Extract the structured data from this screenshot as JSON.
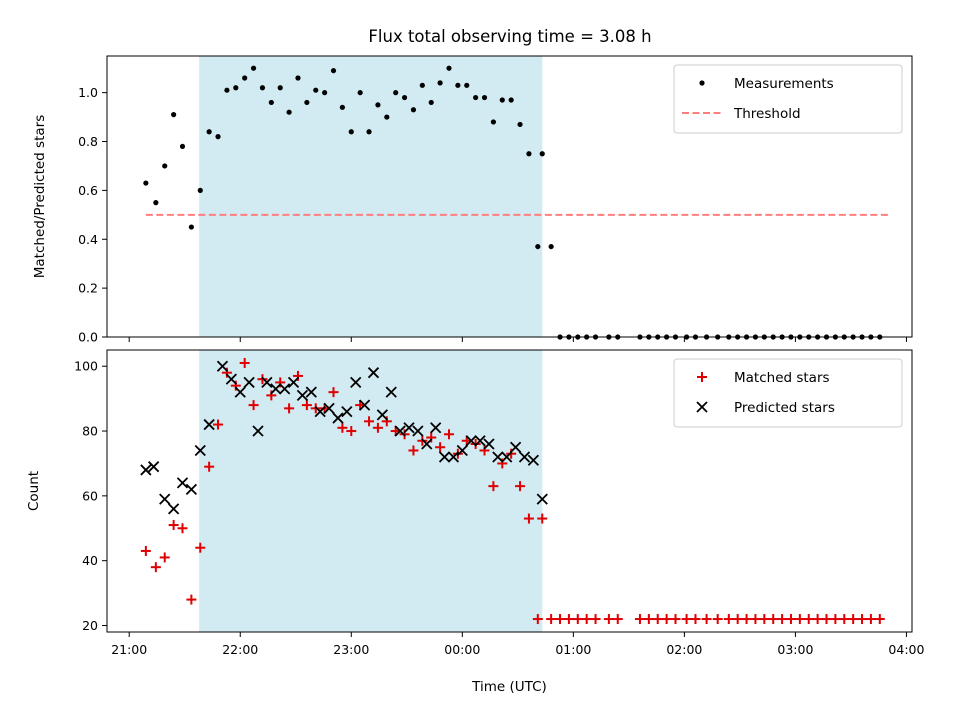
{
  "chart_data": {
    "type": "scatter",
    "title": "Flux total observing time = 3.08 h",
    "xlabel": "Time (UTC)",
    "x_unit": "hours since 21:00 UTC",
    "xlim": [
      -0.2,
      7.05
    ],
    "xticks": [
      {
        "value": 0,
        "label": "21:00"
      },
      {
        "value": 1,
        "label": "22:00"
      },
      {
        "value": 2,
        "label": "23:00"
      },
      {
        "value": 3,
        "label": "00:00"
      },
      {
        "value": 4,
        "label": "01:00"
      },
      {
        "value": 5,
        "label": "02:00"
      },
      {
        "value": 6,
        "label": "03:00"
      },
      {
        "value": 7,
        "label": "04:00"
      }
    ],
    "shaded_span": {
      "x0": 0.63,
      "x1": 3.72,
      "color": "#add8e6"
    },
    "colors": {
      "measurements": "#000000",
      "threshold": "#ff7f7f",
      "matched": "#e00000",
      "predicted": "#000000"
    },
    "top": {
      "ylabel": "Matched/Predicted stars",
      "ylim": [
        0,
        1.15
      ],
      "yticks": [
        {
          "value": 0.0,
          "label": "0.0"
        },
        {
          "value": 0.2,
          "label": "0.2"
        },
        {
          "value": 0.4,
          "label": "0.4"
        },
        {
          "value": 0.6,
          "label": "0.6"
        },
        {
          "value": 0.8,
          "label": "0.8"
        },
        {
          "value": 1.0,
          "label": "1.0"
        }
      ],
      "legend": {
        "position": "top-right",
        "entries": [
          {
            "label": "Measurements",
            "marker": "dot"
          },
          {
            "label": "Threshold",
            "marker": "dashed-line"
          }
        ]
      },
      "threshold": {
        "x0": 0.15,
        "x1": 6.85,
        "y": 0.5
      },
      "series": [
        {
          "name": "Measurements",
          "marker": "dot",
          "x": [
            0.15,
            0.24,
            0.32,
            0.4,
            0.48,
            0.56,
            0.64,
            0.72,
            0.8,
            0.88,
            0.96,
            1.04,
            1.12,
            1.2,
            1.28,
            1.36,
            1.44,
            1.52,
            1.6,
            1.68,
            1.76,
            1.84,
            1.92,
            2.0,
            2.08,
            2.16,
            2.24,
            2.32,
            2.4,
            2.48,
            2.56,
            2.64,
            2.72,
            2.8,
            2.88,
            2.96,
            3.04,
            3.12,
            3.2,
            3.28,
            3.36,
            3.44,
            3.52,
            3.6,
            3.68,
            3.72,
            3.8,
            3.88,
            3.96,
            4.04,
            4.12,
            4.2,
            4.32,
            4.4,
            4.6,
            4.68,
            4.76,
            4.84,
            4.92,
            5.02,
            5.1,
            5.2,
            5.3,
            5.4,
            5.48,
            5.56,
            5.64,
            5.72,
            5.8,
            5.88,
            5.96,
            6.04,
            6.12,
            6.2,
            6.28,
            6.36,
            6.44,
            6.52,
            6.6,
            6.68,
            6.76
          ],
          "y": [
            0.63,
            0.55,
            0.7,
            0.91,
            0.78,
            0.45,
            0.6,
            0.84,
            0.82,
            1.01,
            1.02,
            1.06,
            1.1,
            1.02,
            0.96,
            1.02,
            0.92,
            1.06,
            0.96,
            1.01,
            1.0,
            1.09,
            0.94,
            0.84,
            1.0,
            0.84,
            0.95,
            0.9,
            1.0,
            0.98,
            0.93,
            1.03,
            0.96,
            1.04,
            1.1,
            1.03,
            1.03,
            0.98,
            0.98,
            0.88,
            0.97,
            0.97,
            0.87,
            0.75,
            0.37,
            0.75,
            0.37,
            0,
            0,
            0,
            0,
            0,
            0,
            0,
            0,
            0,
            0,
            0,
            0,
            0,
            0,
            0,
            0,
            0,
            0,
            0,
            0,
            0,
            0,
            0,
            0,
            0,
            0,
            0,
            0,
            0,
            0,
            0,
            0,
            0,
            0
          ]
        }
      ]
    },
    "bottom": {
      "ylabel": "Count",
      "ylim": [
        18,
        105
      ],
      "yticks": [
        {
          "value": 20,
          "label": "20"
        },
        {
          "value": 40,
          "label": "40"
        },
        {
          "value": 60,
          "label": "60"
        },
        {
          "value": 80,
          "label": "80"
        },
        {
          "value": 100,
          "label": "100"
        }
      ],
      "legend": {
        "position": "top-right",
        "entries": [
          {
            "label": "Matched stars",
            "marker": "plus"
          },
          {
            "label": "Predicted stars",
            "marker": "x"
          }
        ]
      },
      "series": [
        {
          "name": "Matched stars",
          "marker": "plus",
          "x": [
            0.15,
            0.24,
            0.32,
            0.4,
            0.48,
            0.56,
            0.64,
            0.72,
            0.8,
            0.88,
            0.96,
            1.04,
            1.12,
            1.2,
            1.28,
            1.36,
            1.44,
            1.52,
            1.6,
            1.68,
            1.76,
            1.84,
            1.92,
            2.0,
            2.08,
            2.16,
            2.24,
            2.32,
            2.4,
            2.48,
            2.56,
            2.64,
            2.72,
            2.8,
            2.88,
            2.96,
            3.04,
            3.12,
            3.2,
            3.28,
            3.36,
            3.44,
            3.52,
            3.6,
            3.68,
            3.72,
            3.8,
            3.88,
            3.96,
            4.04,
            4.12,
            4.2,
            4.32,
            4.4,
            4.6,
            4.68,
            4.76,
            4.84,
            4.92,
            5.02,
            5.1,
            5.2,
            5.3,
            5.4,
            5.48,
            5.56,
            5.64,
            5.72,
            5.8,
            5.88,
            5.96,
            6.04,
            6.12,
            6.2,
            6.28,
            6.36,
            6.44,
            6.52,
            6.6,
            6.68,
            6.76
          ],
          "y": [
            43,
            38,
            41,
            51,
            50,
            28,
            44,
            69,
            82,
            98,
            94,
            101,
            88,
            96,
            91,
            95,
            87,
            97,
            88,
            87,
            87,
            92,
            81,
            80,
            88,
            83,
            81,
            83,
            80,
            79,
            74,
            77,
            78,
            75,
            79,
            73,
            77,
            76,
            74,
            63,
            70,
            73,
            63,
            53,
            22,
            53,
            22,
            22,
            22,
            22,
            22,
            22,
            22,
            22,
            22,
            22,
            22,
            22,
            22,
            22,
            22,
            22,
            22,
            22,
            22,
            22,
            22,
            22,
            22,
            22,
            22,
            22,
            22,
            22,
            22,
            22,
            22,
            22,
            22,
            22,
            22
          ]
        },
        {
          "name": "Predicted stars",
          "marker": "x",
          "x": [
            0.15,
            0.22,
            0.32,
            0.4,
            0.48,
            0.56,
            0.64,
            0.72,
            0.84,
            0.92,
            1.0,
            1.08,
            1.16,
            1.24,
            1.32,
            1.4,
            1.48,
            1.56,
            1.64,
            1.72,
            1.8,
            1.88,
            1.96,
            2.04,
            2.12,
            2.2,
            2.28,
            2.36,
            2.44,
            2.52,
            2.6,
            2.68,
            2.76,
            2.84,
            2.92,
            3.0,
            3.08,
            3.16,
            3.24,
            3.32,
            3.4,
            3.48,
            3.56,
            3.64,
            3.72
          ],
          "y": [
            68,
            69,
            59,
            56,
            64,
            62,
            74,
            82,
            100,
            96,
            92,
            95,
            80,
            95,
            93,
            93,
            95,
            91,
            92,
            86,
            87,
            84,
            86,
            95,
            88,
            98,
            85,
            92,
            80,
            81,
            80,
            76,
            81,
            72,
            72,
            74,
            77,
            77,
            76,
            72,
            72,
            75,
            72,
            71,
            59
          ]
        }
      ]
    }
  }
}
